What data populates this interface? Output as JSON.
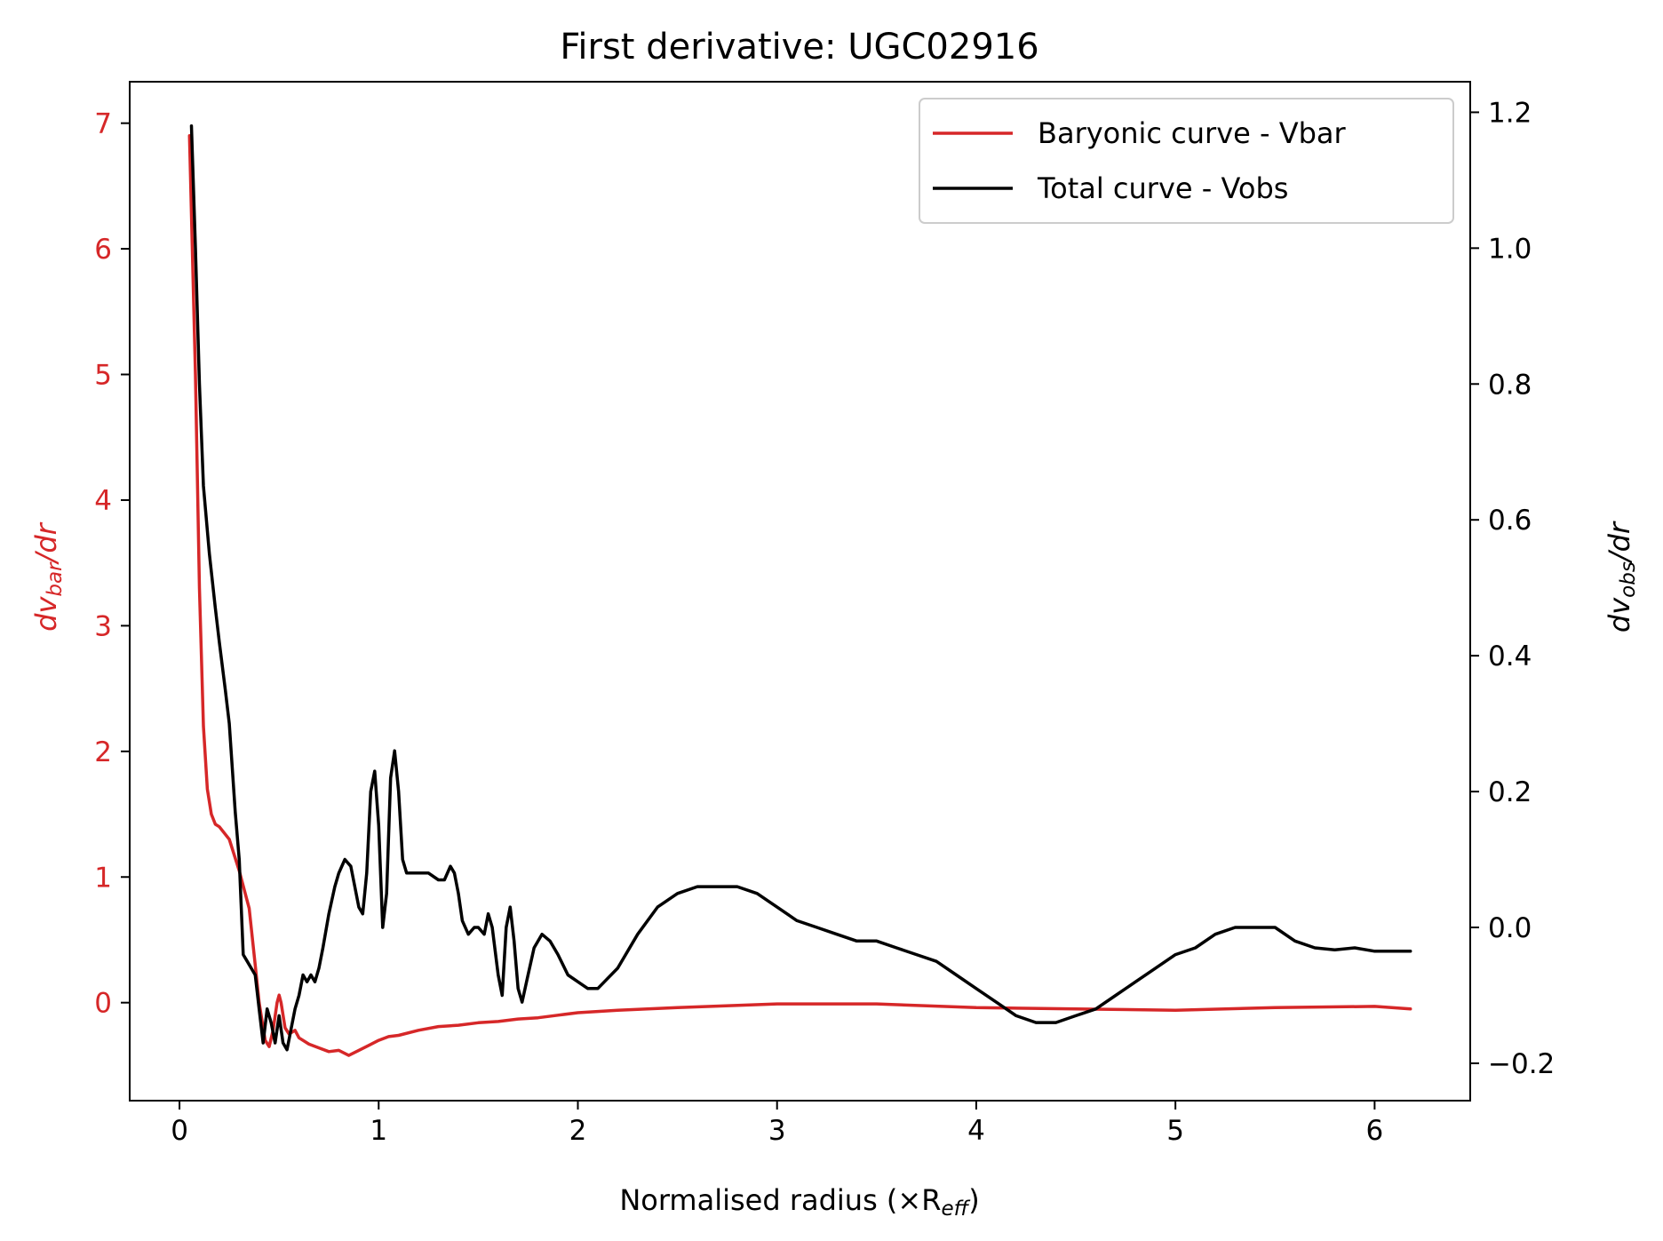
{
  "chart_data": {
    "type": "line",
    "title": "First derivative: UGC02916",
    "xlabel": "Normalised radius (×R",
    "xlabel_sub": "eff",
    "xlabel_close": ")",
    "ylabel_left": {
      "main": "dv",
      "sub": "bar",
      "tail": "/dr"
    },
    "ylabel_right": {
      "main": "dv",
      "sub": "obs",
      "tail": "/dr"
    },
    "xlim": [
      -0.25,
      6.48
    ],
    "ylim_left": [
      -0.78,
      7.33
    ],
    "ylim_right": [
      -0.255,
      1.245
    ],
    "xticks": [
      0,
      1,
      2,
      3,
      4,
      5,
      6
    ],
    "xtick_labels": [
      "0",
      "1",
      "2",
      "3",
      "4",
      "5",
      "6"
    ],
    "yticks_left": [
      0,
      1,
      2,
      3,
      4,
      5,
      6,
      7
    ],
    "ytick_labels_left": [
      "0",
      "1",
      "2",
      "3",
      "4",
      "5",
      "6",
      "7"
    ],
    "yticks_right": [
      -0.2,
      0.0,
      0.2,
      0.4,
      0.6,
      0.8,
      1.0,
      1.2
    ],
    "ytick_labels_right": [
      "−0.2",
      "0.0",
      "0.2",
      "0.4",
      "0.6",
      "0.8",
      "1.0",
      "1.2"
    ],
    "legend_position": "top-right",
    "grid": false,
    "colors": {
      "baryonic": "#d62728",
      "total": "#000000",
      "left_axis": "#d62728",
      "right_axis": "#000000"
    },
    "series": [
      {
        "name": "Baryonic curve - Vbar",
        "axis": "left",
        "color": "#d62728",
        "x": [
          0.05,
          0.08,
          0.1,
          0.12,
          0.14,
          0.16,
          0.18,
          0.2,
          0.25,
          0.3,
          0.35,
          0.38,
          0.4,
          0.43,
          0.45,
          0.47,
          0.49,
          0.5,
          0.51,
          0.53,
          0.55,
          0.58,
          0.6,
          0.65,
          0.7,
          0.75,
          0.8,
          0.85,
          0.9,
          0.95,
          1.0,
          1.05,
          1.1,
          1.2,
          1.3,
          1.4,
          1.5,
          1.6,
          1.7,
          1.8,
          1.9,
          2.0,
          2.2,
          2.5,
          3.0,
          3.5,
          4.0,
          4.5,
          5.0,
          5.5,
          6.0,
          6.18
        ],
        "y": [
          6.9,
          5.0,
          3.3,
          2.2,
          1.7,
          1.5,
          1.42,
          1.4,
          1.3,
          1.05,
          0.75,
          0.3,
          0.0,
          -0.3,
          -0.35,
          -0.22,
          0.0,
          0.06,
          0.0,
          -0.2,
          -0.25,
          -0.22,
          -0.28,
          -0.33,
          -0.36,
          -0.39,
          -0.38,
          -0.42,
          -0.38,
          -0.34,
          -0.3,
          -0.27,
          -0.26,
          -0.22,
          -0.19,
          -0.18,
          -0.16,
          -0.15,
          -0.13,
          -0.12,
          -0.1,
          -0.08,
          -0.06,
          -0.04,
          -0.01,
          -0.01,
          -0.04,
          -0.05,
          -0.06,
          -0.04,
          -0.03,
          -0.05
        ]
      },
      {
        "name": "Total curve - Vobs",
        "axis": "right",
        "color": "#000000",
        "x": [
          0.06,
          0.08,
          0.1,
          0.12,
          0.15,
          0.18,
          0.2,
          0.23,
          0.25,
          0.28,
          0.3,
          0.32,
          0.34,
          0.36,
          0.38,
          0.4,
          0.42,
          0.44,
          0.46,
          0.48,
          0.5,
          0.52,
          0.54,
          0.56,
          0.58,
          0.6,
          0.62,
          0.64,
          0.66,
          0.68,
          0.7,
          0.72,
          0.75,
          0.78,
          0.8,
          0.83,
          0.86,
          0.88,
          0.9,
          0.92,
          0.94,
          0.96,
          0.98,
          1.0,
          1.02,
          1.04,
          1.06,
          1.08,
          1.1,
          1.12,
          1.14,
          1.16,
          1.2,
          1.25,
          1.3,
          1.33,
          1.36,
          1.38,
          1.4,
          1.42,
          1.45,
          1.48,
          1.5,
          1.53,
          1.55,
          1.57,
          1.6,
          1.62,
          1.64,
          1.66,
          1.68,
          1.7,
          1.72,
          1.75,
          1.78,
          1.82,
          1.86,
          1.9,
          1.95,
          2.0,
          2.05,
          2.1,
          2.2,
          2.3,
          2.4,
          2.5,
          2.6,
          2.7,
          2.8,
          2.9,
          3.0,
          3.1,
          3.2,
          3.3,
          3.4,
          3.5,
          3.6,
          3.7,
          3.8,
          3.9,
          4.0,
          4.1,
          4.2,
          4.3,
          4.4,
          4.5,
          4.6,
          4.7,
          4.8,
          4.9,
          5.0,
          5.1,
          5.2,
          5.3,
          5.4,
          5.5,
          5.6,
          5.7,
          5.8,
          5.9,
          6.0,
          6.1,
          6.18
        ],
        "y": [
          1.18,
          1.0,
          0.8,
          0.65,
          0.55,
          0.47,
          0.42,
          0.35,
          0.3,
          0.17,
          0.1,
          -0.04,
          -0.05,
          -0.06,
          -0.07,
          -0.12,
          -0.17,
          -0.12,
          -0.14,
          -0.17,
          -0.13,
          -0.17,
          -0.18,
          -0.15,
          -0.12,
          -0.1,
          -0.07,
          -0.08,
          -0.07,
          -0.08,
          -0.06,
          -0.03,
          0.02,
          0.06,
          0.08,
          0.1,
          0.09,
          0.06,
          0.03,
          0.02,
          0.08,
          0.2,
          0.23,
          0.15,
          0.0,
          0.05,
          0.22,
          0.26,
          0.2,
          0.1,
          0.08,
          0.08,
          0.08,
          0.08,
          0.07,
          0.07,
          0.09,
          0.08,
          0.05,
          0.01,
          -0.01,
          0.0,
          0.0,
          -0.01,
          0.02,
          0.0,
          -0.07,
          -0.1,
          0.0,
          0.03,
          -0.02,
          -0.09,
          -0.11,
          -0.07,
          -0.03,
          -0.01,
          -0.02,
          -0.04,
          -0.07,
          -0.08,
          -0.09,
          -0.09,
          -0.06,
          -0.01,
          0.03,
          0.05,
          0.06,
          0.06,
          0.06,
          0.05,
          0.03,
          0.01,
          0.0,
          -0.01,
          -0.02,
          -0.02,
          -0.03,
          -0.04,
          -0.05,
          -0.07,
          -0.09,
          -0.11,
          -0.13,
          -0.14,
          -0.14,
          -0.13,
          -0.12,
          -0.1,
          -0.08,
          -0.06,
          -0.04,
          -0.03,
          -0.01,
          0.0,
          0.0,
          0.0,
          -0.02,
          -0.03,
          -0.033,
          -0.03,
          -0.035,
          -0.035,
          -0.035
        ]
      }
    ]
  }
}
